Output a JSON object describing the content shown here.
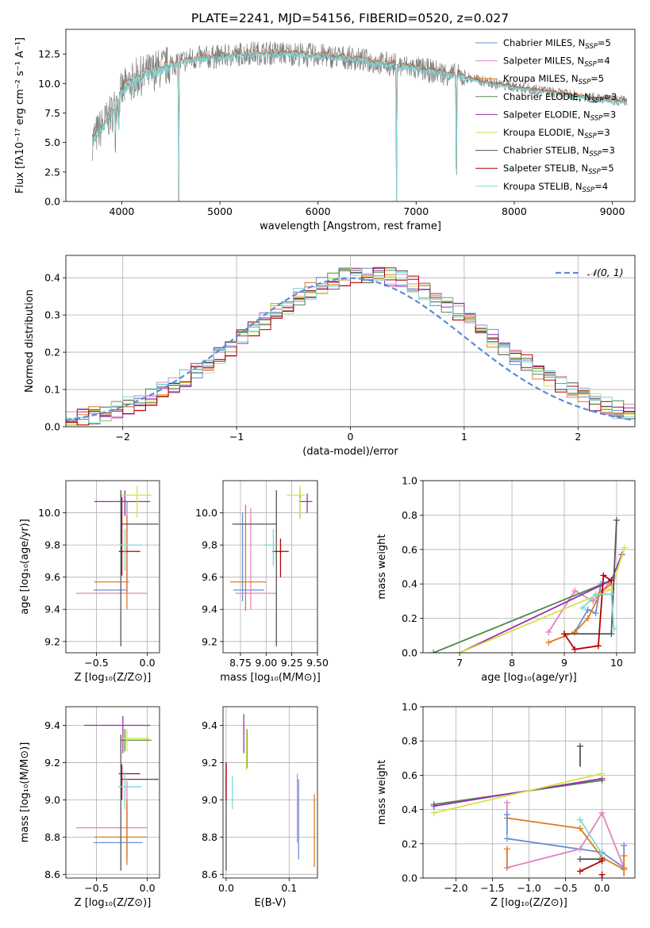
{
  "figure_title": "PLATE=2241, MJD=54156, FIBERID=0520, z=0.027",
  "colors": {
    "Chabrier MILES": "#6a8fd8",
    "Salpeter MILES": "#e085c0",
    "Kroupa MILES": "#e07b20",
    "Chabrier ELODIE": "#4f8a4f",
    "Salpeter ELODIE": "#9b2fae",
    "Kroupa ELODIE": "#d2e34a",
    "Chabrier STELIB": "#555555",
    "Salpeter STELIB": "#b30000",
    "Kroupa STELIB": "#7dd8d8",
    "data": "#808080",
    "normal": "#5b8bd8"
  },
  "chart_data": [
    {
      "id": "spectrum",
      "type": "line",
      "title": "PLATE=2241, MJD=54156, FIBERID=0520, z=0.027",
      "xlabel": "wavelength [Angstrom, rest frame]",
      "ylabel": "Flux [fλ10⁻¹⁷ erg cm⁻² s⁻¹ A⁻¹]",
      "xlim": [
        3430,
        9230
      ],
      "ylim": [
        0,
        14.6
      ],
      "xticks": [
        4000,
        5000,
        6000,
        7000,
        8000,
        9000
      ],
      "yticks": [
        0.0,
        2.5,
        5.0,
        7.5,
        10.0,
        12.5
      ],
      "grid": false,
      "legend_position": "upper-right",
      "legend": [
        {
          "label": "Chabrier MILES, N",
          "sub": "SSP",
          "suffix": "=5"
        },
        {
          "label": "Salpeter MILES, N",
          "sub": "SSP",
          "suffix": "=4"
        },
        {
          "label": "Kroupa MILES, N",
          "sub": "SSP",
          "suffix": "=5"
        },
        {
          "label": "Chabrier ELODIE, N",
          "sub": "SSP",
          "suffix": "=3"
        },
        {
          "label": "Salpeter ELODIE, N",
          "sub": "SSP",
          "suffix": "=3"
        },
        {
          "label": "Kroupa ELODIE, N",
          "sub": "SSP",
          "suffix": "=3"
        },
        {
          "label": "Chabrier STELIB, N",
          "sub": "SSP",
          "suffix": "=3"
        },
        {
          "label": "Salpeter STELIB, N",
          "sub": "SSP",
          "suffix": "=5"
        },
        {
          "label": "Kroupa STELIB, N",
          "sub": "SSP",
          "suffix": "=4"
        }
      ],
      "continuum": [
        [
          3700,
          5.2
        ],
        [
          3800,
          6.4
        ],
        [
          3900,
          7.5
        ],
        [
          3950,
          8.5
        ],
        [
          4000,
          9.3
        ],
        [
          4100,
          10.3
        ],
        [
          4300,
          11.0
        ],
        [
          4500,
          11.6
        ],
        [
          4700,
          12.1
        ],
        [
          5000,
          12.3
        ],
        [
          5300,
          12.6
        ],
        [
          5600,
          12.6
        ],
        [
          6000,
          12.4
        ],
        [
          6300,
          12.2
        ],
        [
          6600,
          11.8
        ],
        [
          7000,
          11.3
        ],
        [
          7400,
          10.7
        ],
        [
          7800,
          10.0
        ],
        [
          8200,
          9.5
        ],
        [
          8600,
          9.0
        ],
        [
          9000,
          8.6
        ],
        [
          9150,
          8.5
        ]
      ],
      "absorption_lines": [
        [
          3934,
          5.2
        ],
        [
          3969,
          5.7
        ],
        [
          4102,
          8.5
        ],
        [
          4227,
          10.3
        ],
        [
          4305,
          10.4
        ],
        [
          4580,
          0
        ],
        [
          5175,
          12.0
        ],
        [
          5892,
          12.3
        ],
        [
          6800,
          0
        ],
        [
          7410,
          0.4
        ]
      ]
    },
    {
      "id": "residuals",
      "type": "area",
      "xlabel": "(data-model)/error",
      "ylabel": "Normed distribution",
      "xlim": [
        -2.5,
        2.5
      ],
      "ylim": [
        0,
        0.46
      ],
      "xticks": [
        -2,
        -1,
        0,
        1,
        2
      ],
      "yticks": [
        0.0,
        0.1,
        0.2,
        0.3,
        0.4
      ],
      "grid": true,
      "legend_position": "upper-right",
      "legend": [
        {
          "label": "𝒩(0, 1)"
        }
      ],
      "bin_edges": [
        -2.5,
        2.5,
        50
      ],
      "histogram_peak": 0.41
    },
    {
      "id": "age-Z",
      "type": "scatter",
      "xlabel": "Z [log₁₀(Z/Z⊙)]",
      "ylabel": "age  [log₁₀(age/yr)]",
      "xlim": [
        -0.8,
        0.12
      ],
      "ylim": [
        9.13,
        10.2
      ],
      "xticks": [
        -0.5,
        0.0
      ],
      "yticks": [
        9.2,
        9.4,
        9.6,
        9.8,
        10.0
      ],
      "grid": true,
      "points": [
        {
          "s": "Chabrier MILES",
          "x": -0.2,
          "y": 9.52,
          "xe": [
            -0.53,
            -0.2
          ],
          "ye": [
            9.52,
            10.07
          ]
        },
        {
          "s": "Salpeter MILES",
          "x": -0.2,
          "y": 9.5,
          "xe": [
            -0.7,
            0.0
          ],
          "ye": [
            9.5,
            10.02
          ]
        },
        {
          "s": "Kroupa MILES",
          "x": -0.2,
          "y": 9.57,
          "xe": [
            -0.52,
            -0.18
          ],
          "ye": [
            9.4,
            9.98
          ]
        },
        {
          "s": "Chabrier ELODIE",
          "x": -0.22,
          "y": 10.07,
          "xe": [
            -0.26,
            -0.2
          ],
          "ye": [
            10.0,
            10.12
          ]
        },
        {
          "s": "Salpeter ELODIE",
          "x": -0.22,
          "y": 10.07,
          "xe": [
            -0.52,
            0.03
          ],
          "ye": [
            9.98,
            10.14
          ]
        },
        {
          "s": "Kroupa ELODIE",
          "x": -0.1,
          "y": 10.11,
          "xe": [
            -0.27,
            0.04
          ],
          "ye": [
            9.97,
            10.17
          ]
        },
        {
          "s": "Chabrier STELIB",
          "x": -0.26,
          "y": 9.93,
          "xe": [
            -0.26,
            0.11
          ],
          "ye": [
            9.17,
            10.14
          ]
        },
        {
          "s": "Salpeter STELIB",
          "x": -0.25,
          "y": 9.76,
          "xe": [
            -0.28,
            -0.07
          ],
          "ye": [
            9.61,
            10.1
          ]
        },
        {
          "s": "Kroupa STELIB",
          "x": -0.22,
          "y": 9.8,
          "xe": [
            -0.28,
            -0.05
          ],
          "ye": [
            9.64,
            9.9
          ]
        }
      ]
    },
    {
      "id": "age-mass",
      "type": "scatter",
      "xlabel": "mass [log₁₀(M/M⊙)]",
      "ylabel": "",
      "xlim": [
        8.58,
        9.5
      ],
      "ylim": [
        9.13,
        10.2
      ],
      "xticks": [
        8.75,
        9.0,
        9.25,
        9.5
      ],
      "yticks": [
        9.2,
        9.4,
        9.6,
        9.8,
        10.0
      ],
      "grid": true,
      "points": [
        {
          "s": "Chabrier MILES",
          "x": 8.77,
          "y": 9.52,
          "xe": [
            8.68,
            8.98
          ],
          "ye": [
            9.45,
            10.0
          ]
        },
        {
          "s": "Salpeter MILES",
          "x": 8.85,
          "y": 9.5,
          "xe": [
            8.7,
            9.1
          ],
          "ye": [
            9.4,
            10.03
          ]
        },
        {
          "s": "Kroupa MILES",
          "x": 8.8,
          "y": 9.57,
          "xe": [
            8.65,
            9.0
          ],
          "ye": [
            9.39,
            10.05
          ]
        },
        {
          "s": "Chabrier ELODIE",
          "x": 9.33,
          "y": 10.1,
          "xe": [
            9.32,
            9.34
          ],
          "ye": [
            9.97,
            10.15
          ]
        },
        {
          "s": "Salpeter ELODIE",
          "x": 9.4,
          "y": 10.07,
          "xe": [
            9.32,
            9.45
          ],
          "ye": [
            10.0,
            10.12
          ]
        },
        {
          "s": "Kroupa ELODIE",
          "x": 9.33,
          "y": 10.11,
          "xe": [
            9.2,
            9.38
          ],
          "ye": [
            9.96,
            10.17
          ]
        },
        {
          "s": "Chabrier STELIB",
          "x": 9.1,
          "y": 9.93,
          "xe": [
            8.67,
            9.1
          ],
          "ye": [
            9.17,
            10.14
          ]
        },
        {
          "s": "Salpeter STELIB",
          "x": 9.14,
          "y": 9.76,
          "xe": [
            9.06,
            9.22
          ],
          "ye": [
            9.6,
            9.84
          ]
        },
        {
          "s": "Kroupa STELIB",
          "x": 9.07,
          "y": 9.8,
          "xe": [
            8.98,
            9.1
          ],
          "ye": [
            9.67,
            9.9
          ]
        }
      ]
    },
    {
      "id": "massweight-age",
      "type": "line",
      "xlabel": "age  [log₁₀(age/yr)]",
      "ylabel": "mass weight",
      "xlim": [
        6.3,
        10.35
      ],
      "ylim": [
        0,
        1.0
      ],
      "xticks": [
        7,
        8,
        9,
        10
      ],
      "yticks": [
        0.0,
        0.2,
        0.4,
        0.6,
        0.8,
        1.0
      ],
      "grid": true,
      "series": [
        {
          "name": "Chabrier MILES",
          "x": [
            9.2,
            9.45,
            9.6,
            9.7,
            9.9
          ],
          "y": [
            0.12,
            0.25,
            0.23,
            0.4,
            0.42
          ]
        },
        {
          "name": "Salpeter MILES",
          "x": [
            8.7,
            9.2,
            9.55,
            9.7,
            9.9
          ],
          "y": [
            0.12,
            0.36,
            0.3,
            0.35,
            0.42
          ]
        },
        {
          "name": "Kroupa MILES",
          "x": [
            8.7,
            9.2,
            9.45,
            9.7,
            9.9
          ],
          "y": [
            0.06,
            0.12,
            0.2,
            0.35,
            0.4
          ]
        },
        {
          "name": "Chabrier ELODIE",
          "x": [
            6.5,
            9.9
          ],
          "y": [
            0.0,
            0.42
          ]
        },
        {
          "name": "Salpeter ELODIE",
          "x": [
            7.0,
            9.9,
            10.1
          ],
          "y": [
            0.0,
            0.42,
            0.57
          ]
        },
        {
          "name": "Kroupa ELODIE",
          "x": [
            7.0,
            9.9,
            10.15
          ],
          "y": [
            0.0,
            0.37,
            0.61
          ]
        },
        {
          "name": "Chabrier STELIB",
          "x": [
            9.0,
            9.9,
            10.0
          ],
          "y": [
            0.11,
            0.11,
            0.77
          ]
        },
        {
          "name": "Salpeter STELIB",
          "x": [
            9.0,
            9.2,
            9.65,
            9.75,
            9.9
          ],
          "y": [
            0.11,
            0.02,
            0.04,
            0.45,
            0.42
          ]
        },
        {
          "name": "Kroupa STELIB",
          "x": [
            9.35,
            9.6,
            9.9,
            9.95
          ],
          "y": [
            0.26,
            0.34,
            0.34,
            0.14
          ]
        }
      ]
    },
    {
      "id": "mass-Z",
      "type": "scatter",
      "xlabel": "Z [log₁₀(Z/Z⊙)]",
      "ylabel": "mass [log₁₀(M/M⊙)]",
      "xlim": [
        -0.8,
        0.12
      ],
      "ylim": [
        8.58,
        9.5
      ],
      "xticks": [
        -0.5,
        0.0
      ],
      "yticks": [
        8.6,
        8.8,
        9.0,
        9.2,
        9.4
      ],
      "grid": true,
      "points": [
        {
          "s": "Chabrier MILES",
          "x": -0.2,
          "y": 8.77,
          "xe": [
            -0.53,
            -0.05
          ],
          "ye": [
            8.68,
            8.98
          ]
        },
        {
          "s": "Salpeter MILES",
          "x": -0.2,
          "y": 8.85,
          "xe": [
            -0.7,
            0.0
          ],
          "ye": [
            8.7,
            9.1
          ]
        },
        {
          "s": "Kroupa MILES",
          "x": -0.2,
          "y": 8.8,
          "xe": [
            -0.52,
            0.0
          ],
          "ye": [
            8.65,
            9.0
          ]
        },
        {
          "s": "Chabrier ELODIE",
          "x": -0.22,
          "y": 9.32,
          "xe": [
            -0.26,
            0.04
          ],
          "ye": [
            9.26,
            9.38
          ]
        },
        {
          "s": "Salpeter ELODIE",
          "x": -0.24,
          "y": 9.4,
          "xe": [
            -0.62,
            0.03
          ],
          "ye": [
            9.25,
            9.45
          ]
        },
        {
          "s": "Kroupa ELODIE",
          "x": -0.2,
          "y": 9.33,
          "xe": [
            -0.26,
            0.02
          ],
          "ye": [
            9.26,
            9.38
          ]
        },
        {
          "s": "Chabrier STELIB",
          "x": -0.26,
          "y": 9.11,
          "xe": [
            -0.26,
            0.11
          ],
          "ye": [
            8.62,
            9.35
          ]
        },
        {
          "s": "Salpeter STELIB",
          "x": -0.25,
          "y": 9.14,
          "xe": [
            -0.28,
            -0.07
          ],
          "ye": [
            9.0,
            9.19
          ]
        },
        {
          "s": "Kroupa STELIB",
          "x": -0.22,
          "y": 9.07,
          "xe": [
            -0.29,
            -0.06
          ],
          "ye": [
            8.95,
            9.15
          ]
        }
      ]
    },
    {
      "id": "mass-EBV",
      "type": "scatter",
      "xlabel": "E(B-V)",
      "ylabel": "",
      "xlim": [
        -0.005,
        0.145
      ],
      "ylim": [
        8.58,
        9.5
      ],
      "xticks": [
        0.0,
        0.1
      ],
      "yticks": [
        8.6,
        8.8,
        9.0,
        9.2,
        9.4
      ],
      "grid": true,
      "points": [
        {
          "s": "Chabrier MILES",
          "x": 0.115,
          "y": 8.77,
          "ye": [
            8.68,
            9.11
          ]
        },
        {
          "s": "Salpeter MILES",
          "x": 0.113,
          "y": 8.85,
          "ye": [
            8.77,
            9.14
          ]
        },
        {
          "s": "Kroupa MILES",
          "x": 0.14,
          "y": 8.8,
          "ye": [
            8.64,
            9.03
          ]
        },
        {
          "s": "Chabrier ELODIE",
          "x": 0.033,
          "y": 9.32,
          "ye": [
            9.17,
            9.38
          ]
        },
        {
          "s": "Salpeter ELODIE",
          "x": 0.028,
          "y": 9.4,
          "ye": [
            9.25,
            9.46
          ]
        },
        {
          "s": "Kroupa ELODIE",
          "x": 0.032,
          "y": 9.33,
          "ye": [
            9.16,
            9.38
          ]
        },
        {
          "s": "Chabrier STELIB",
          "x": 0.0,
          "y": 9.11,
          "ye": [
            8.62,
            9.2
          ]
        },
        {
          "s": "Salpeter STELIB",
          "x": 0.0,
          "y": 9.14,
          "ye": [
            9.0,
            9.2
          ]
        },
        {
          "s": "Kroupa STELIB",
          "x": 0.01,
          "y": 9.07,
          "ye": [
            8.95,
            9.13
          ]
        }
      ]
    },
    {
      "id": "massweight-Z",
      "type": "line",
      "xlabel": "Z [log₁₀(Z/Z⊙)]",
      "ylabel": "mass weight",
      "xlim": [
        -2.45,
        0.45
      ],
      "ylim": [
        0,
        1.0
      ],
      "xticks": [
        -2.0,
        -1.5,
        -1.0,
        -0.5,
        0.0
      ],
      "yticks": [
        0.0,
        0.2,
        0.4,
        0.6,
        0.8,
        1.0
      ],
      "grid": true,
      "series": [
        {
          "name": "Chabrier MILES",
          "x": [
            -1.3,
            0.0,
            0.3
          ],
          "y": [
            0.23,
            0.15,
            0.06
          ]
        },
        {
          "name": "Salpeter MILES",
          "x": [
            -1.3,
            -0.3,
            0.0,
            0.3
          ],
          "y": [
            0.06,
            0.17,
            0.38,
            0.06
          ]
        },
        {
          "name": "Kroupa MILES",
          "x": [
            -1.3,
            -0.3,
            0.0,
            0.3
          ],
          "y": [
            0.35,
            0.29,
            0.12,
            0.05
          ]
        },
        {
          "name": "Chabrier ELODIE",
          "x": [
            -2.3,
            0.0
          ],
          "y": [
            0.43,
            0.57
          ]
        },
        {
          "name": "Salpeter ELODIE",
          "x": [
            -2.3,
            0.0
          ],
          "y": [
            0.42,
            0.58
          ]
        },
        {
          "name": "Kroupa ELODIE",
          "x": [
            -2.3,
            0.0
          ],
          "y": [
            0.38,
            0.61
          ]
        },
        {
          "name": "Chabrier STELIB",
          "x": [
            -0.3,
            0.0
          ],
          "y": [
            0.11,
            0.11
          ]
        },
        {
          "name": "Salpeter STELIB",
          "x": [
            -0.3,
            0.0
          ],
          "y": [
            0.04,
            0.1
          ]
        },
        {
          "name": "Kroupa STELIB",
          "x": [
            -0.3,
            0.0
          ],
          "y": [
            0.34,
            0.14
          ]
        }
      ],
      "markers": [
        {
          "s": "Chabrier STELIB",
          "x": -0.3,
          "y": 0.77
        },
        {
          "s": "Salpeter MILES",
          "x": -1.3,
          "y": 0.44
        },
        {
          "s": "Chabrier MILES",
          "x": -1.3,
          "y": 0.37
        },
        {
          "s": "Kroupa MILES",
          "x": -1.3,
          "y": 0.17
        },
        {
          "s": "Chabrier MILES",
          "x": 0.3,
          "y": 0.19
        },
        {
          "s": "Kroupa MILES",
          "x": 0.3,
          "y": 0.13
        },
        {
          "s": "Salpeter STELIB",
          "x": 0.0,
          "y": 0.02
        }
      ]
    }
  ]
}
